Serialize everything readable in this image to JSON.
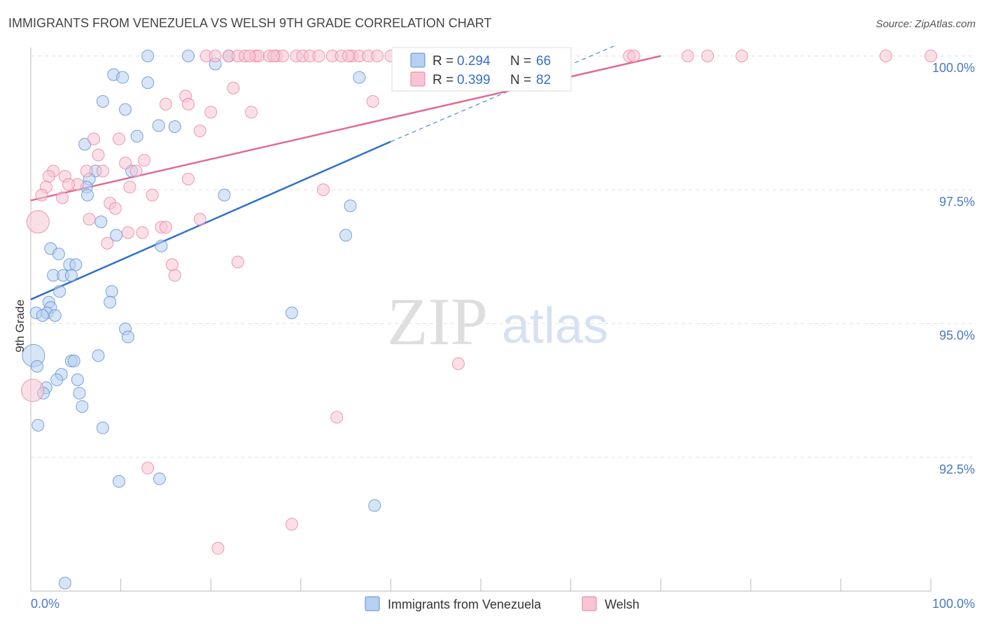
{
  "chart_data": {
    "type": "scatter",
    "title": "IMMIGRANTS FROM VENEZUELA VS WELSH 9TH GRADE CORRELATION CHART",
    "source": "Source: ZipAtlas.com",
    "ylabel": "9th Grade",
    "xlim": [
      0,
      100
    ],
    "ylim": [
      90.1,
      100.2
    ],
    "x_tick_labels": [
      "0.0%",
      "100.0%"
    ],
    "y_ticks": [
      92.5,
      95.0,
      97.5,
      100.0
    ],
    "y_tick_labels": [
      "92.5%",
      "95.0%",
      "97.5%",
      "100.0%"
    ],
    "watermark": {
      "a": "ZIP",
      "b": "atlas"
    },
    "legend": {
      "r_label": "R =",
      "n_label": "N =",
      "items": [
        {
          "name": "Immigrants from Venezuela",
          "r": "0.294",
          "n": "66"
        },
        {
          "name": "Welsh",
          "r": "0.399",
          "n": "82"
        }
      ]
    },
    "series": [
      {
        "name": "Immigrants from Venezuela",
        "color": "#5b8fd6",
        "fill": "#b7cff0",
        "trend": {
          "x0": 0,
          "y0": 95.45,
          "x1": 40,
          "y1": 98.4,
          "dash_to_x": 65,
          "dash_to_y": 100.2
        },
        "points": [
          [
            13,
            100
          ],
          [
            17.5,
            100
          ],
          [
            22,
            100
          ],
          [
            20.5,
            99.85
          ],
          [
            36.5,
            99.6
          ],
          [
            9.2,
            99.65
          ],
          [
            10.2,
            99.6
          ],
          [
            13,
            99.5
          ],
          [
            8,
            99.15
          ],
          [
            10.5,
            99
          ],
          [
            14.2,
            98.7
          ],
          [
            16,
            98.68
          ],
          [
            11.8,
            98.5
          ],
          [
            6,
            98.35
          ],
          [
            7.2,
            97.85
          ],
          [
            11.2,
            97.85
          ],
          [
            6.5,
            97.7
          ],
          [
            6.2,
            97.55
          ],
          [
            6.3,
            97.4
          ],
          [
            21.5,
            97.4
          ],
          [
            35.5,
            97.2
          ],
          [
            7.8,
            96.9
          ],
          [
            9.5,
            96.65
          ],
          [
            35,
            96.65
          ],
          [
            14.5,
            96.45
          ],
          [
            2.2,
            96.4
          ],
          [
            3.1,
            96.3
          ],
          [
            4.3,
            96.1
          ],
          [
            5,
            96.1
          ],
          [
            2.5,
            95.9
          ],
          [
            3.6,
            95.9
          ],
          [
            4.5,
            95.9
          ],
          [
            9,
            95.6
          ],
          [
            3.2,
            95.6
          ],
          [
            2,
            95.4
          ],
          [
            8.8,
            95.4
          ],
          [
            2.2,
            95.3
          ],
          [
            0.6,
            95.2
          ],
          [
            1.8,
            95.2
          ],
          [
            1.3,
            95.15
          ],
          [
            2.7,
            95.15
          ],
          [
            29,
            95.2
          ],
          [
            10.5,
            94.9
          ],
          [
            10.8,
            94.75
          ],
          [
            0.3,
            94.4
          ],
          [
            7.5,
            94.4
          ],
          [
            4.5,
            94.3
          ],
          [
            4.8,
            94.3
          ],
          [
            0.7,
            94.2
          ],
          [
            3.4,
            94.05
          ],
          [
            2.9,
            93.95
          ],
          [
            5.2,
            93.95
          ],
          [
            1.7,
            93.8
          ],
          [
            1.4,
            93.7
          ],
          [
            5.4,
            93.7
          ],
          [
            5.7,
            93.45
          ],
          [
            0.8,
            93.1
          ],
          [
            8,
            93.05
          ],
          [
            9.8,
            92.05
          ],
          [
            14.3,
            92.1
          ],
          [
            38.2,
            91.6
          ],
          [
            3.8,
            90.15
          ]
        ],
        "big_points": [
          [
            0.3,
            94.4
          ]
        ]
      },
      {
        "name": "Welsh",
        "color": "#e9819f",
        "fill": "#f8c4d3",
        "trend": {
          "x0": 0,
          "y0": 97.3,
          "x1": 70,
          "y1": 100.0
        },
        "points": [
          [
            19.5,
            100
          ],
          [
            20.5,
            100
          ],
          [
            22,
            100
          ],
          [
            23,
            100
          ],
          [
            23.8,
            100
          ],
          [
            25,
            100
          ],
          [
            25.3,
            100
          ],
          [
            26.5,
            100
          ],
          [
            27.3,
            100
          ],
          [
            28,
            100
          ],
          [
            29.5,
            100
          ],
          [
            30.2,
            100
          ],
          [
            31,
            100
          ],
          [
            32,
            100
          ],
          [
            33.5,
            100
          ],
          [
            34.5,
            100
          ],
          [
            35.7,
            100
          ],
          [
            36.5,
            100
          ],
          [
            37.5,
            100
          ],
          [
            38.5,
            100
          ],
          [
            40,
            100
          ],
          [
            41.5,
            100
          ],
          [
            27,
            100
          ],
          [
            35.3,
            100
          ],
          [
            24.3,
            100
          ],
          [
            66.5,
            100
          ],
          [
            67,
            100
          ],
          [
            73,
            100
          ],
          [
            75.2,
            100
          ],
          [
            79,
            100
          ],
          [
            95,
            100
          ],
          [
            100,
            100
          ],
          [
            22.5,
            99.4
          ],
          [
            17.2,
            99.25
          ],
          [
            15,
            99.1
          ],
          [
            17.5,
            99.1
          ],
          [
            20,
            98.95
          ],
          [
            24.5,
            98.95
          ],
          [
            38,
            99.15
          ],
          [
            18.8,
            98.6
          ],
          [
            7,
            98.45
          ],
          [
            9.8,
            98.45
          ],
          [
            7.5,
            98.15
          ],
          [
            10.5,
            98
          ],
          [
            12.6,
            98.05
          ],
          [
            2.5,
            97.85
          ],
          [
            2,
            97.75
          ],
          [
            3.8,
            97.75
          ],
          [
            6.2,
            97.85
          ],
          [
            8,
            97.85
          ],
          [
            11.7,
            97.85
          ],
          [
            17.5,
            97.7
          ],
          [
            5.2,
            97.6
          ],
          [
            4.2,
            97.6
          ],
          [
            1.7,
            97.55
          ],
          [
            11,
            97.55
          ],
          [
            32.5,
            97.5
          ],
          [
            1.2,
            97.4
          ],
          [
            13.5,
            97.4
          ],
          [
            3.5,
            97.35
          ],
          [
            8.8,
            97.25
          ],
          [
            9.4,
            97.15
          ],
          [
            0.8,
            96.9
          ],
          [
            6.5,
            96.95
          ],
          [
            18.8,
            96.95
          ],
          [
            14.5,
            96.8
          ],
          [
            15,
            96.8
          ],
          [
            10.8,
            96.7
          ],
          [
            12.4,
            96.7
          ],
          [
            8.5,
            96.5
          ],
          [
            23,
            96.15
          ],
          [
            15.7,
            96.1
          ],
          [
            16,
            95.9
          ],
          [
            47.5,
            94.25
          ],
          [
            34,
            93.25
          ],
          [
            13,
            92.3
          ],
          [
            29,
            91.25
          ],
          [
            20.8,
            90.8
          ],
          [
            0.2,
            93.75
          ]
        ],
        "big_points": [
          [
            0.8,
            96.9
          ],
          [
            0.2,
            93.75
          ]
        ]
      }
    ]
  }
}
